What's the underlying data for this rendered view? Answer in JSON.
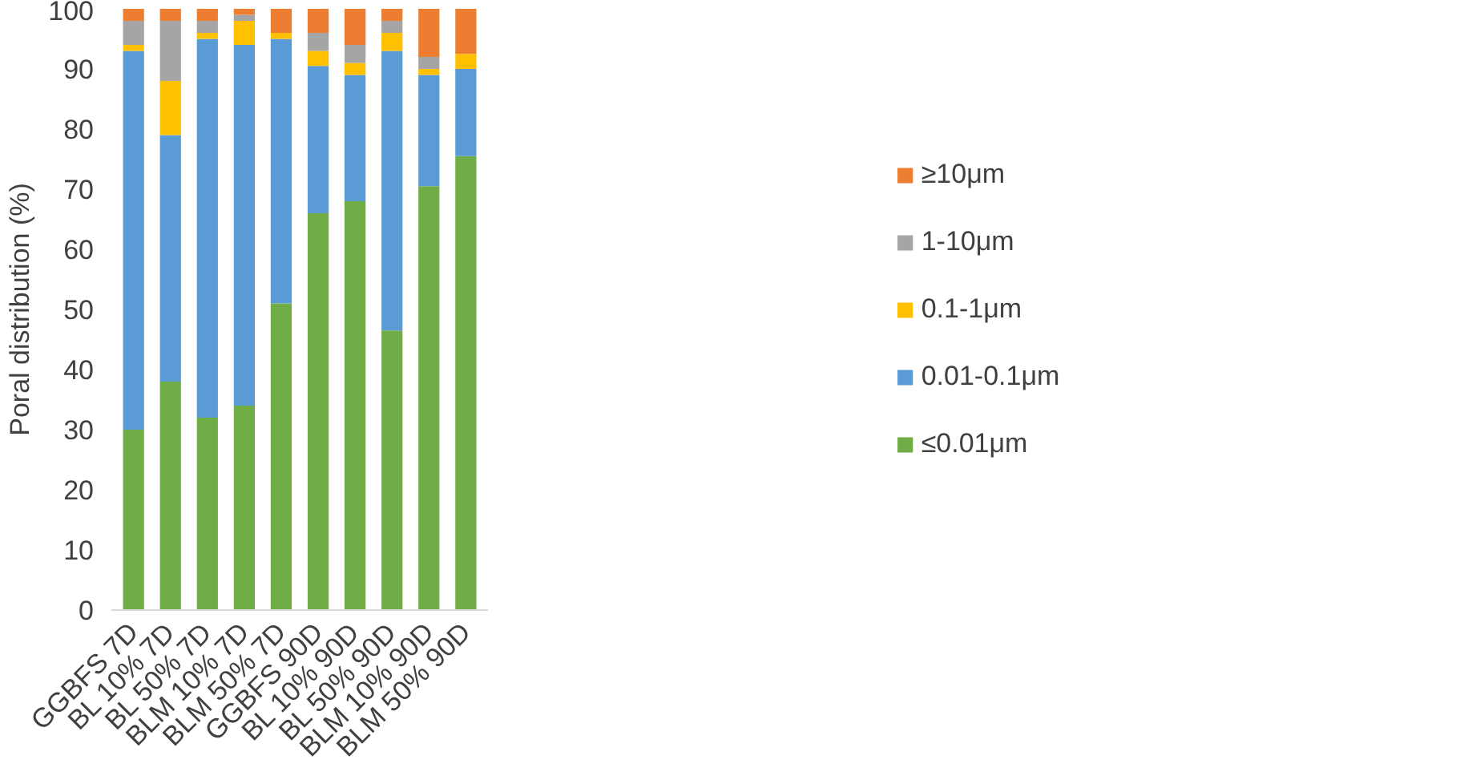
{
  "chart_data": {
    "type": "bar",
    "stacked": true,
    "ylabel": "Poral distribution (%)",
    "categories": [
      "GGBFS 7D",
      "BL 10% 7D",
      "BL 50% 7D",
      "BLM 10% 7D",
      "BLM 50% 7D",
      "GGBFS 90D",
      "BL 10% 90D",
      "BL 50% 90D",
      "BLM 10% 90D",
      "BLM 50% 90D"
    ],
    "series": [
      {
        "name": "≤0.01μm",
        "color": "#70ad47",
        "values": [
          30,
          38,
          32,
          34,
          51,
          66,
          68,
          46.5,
          70.5,
          75.5
        ]
      },
      {
        "name": "0.01-0.1μm",
        "color": "#5b9bd5",
        "values": [
          63,
          41,
          63,
          60,
          44,
          24.5,
          21,
          46.5,
          18.5,
          14.5
        ]
      },
      {
        "name": "0.1-1μm",
        "color": "#ffc000",
        "values": [
          1,
          9,
          1,
          4,
          1,
          2.5,
          2,
          3,
          1,
          2.5
        ]
      },
      {
        "name": "1-10μm",
        "color": "#a5a5a5",
        "values": [
          4,
          10,
          2,
          1,
          0,
          3,
          3,
          2,
          2,
          0
        ]
      },
      {
        "name": "≥10μm",
        "color": "#ed7d31",
        "values": [
          2,
          2,
          2,
          1,
          4,
          4,
          6,
          2,
          8,
          7.5
        ]
      }
    ],
    "ylim": [
      0,
      100
    ],
    "yticks": [
      0,
      10,
      20,
      30,
      40,
      50,
      60,
      70,
      80,
      90,
      100
    ],
    "grid": false,
    "legend": "right"
  }
}
